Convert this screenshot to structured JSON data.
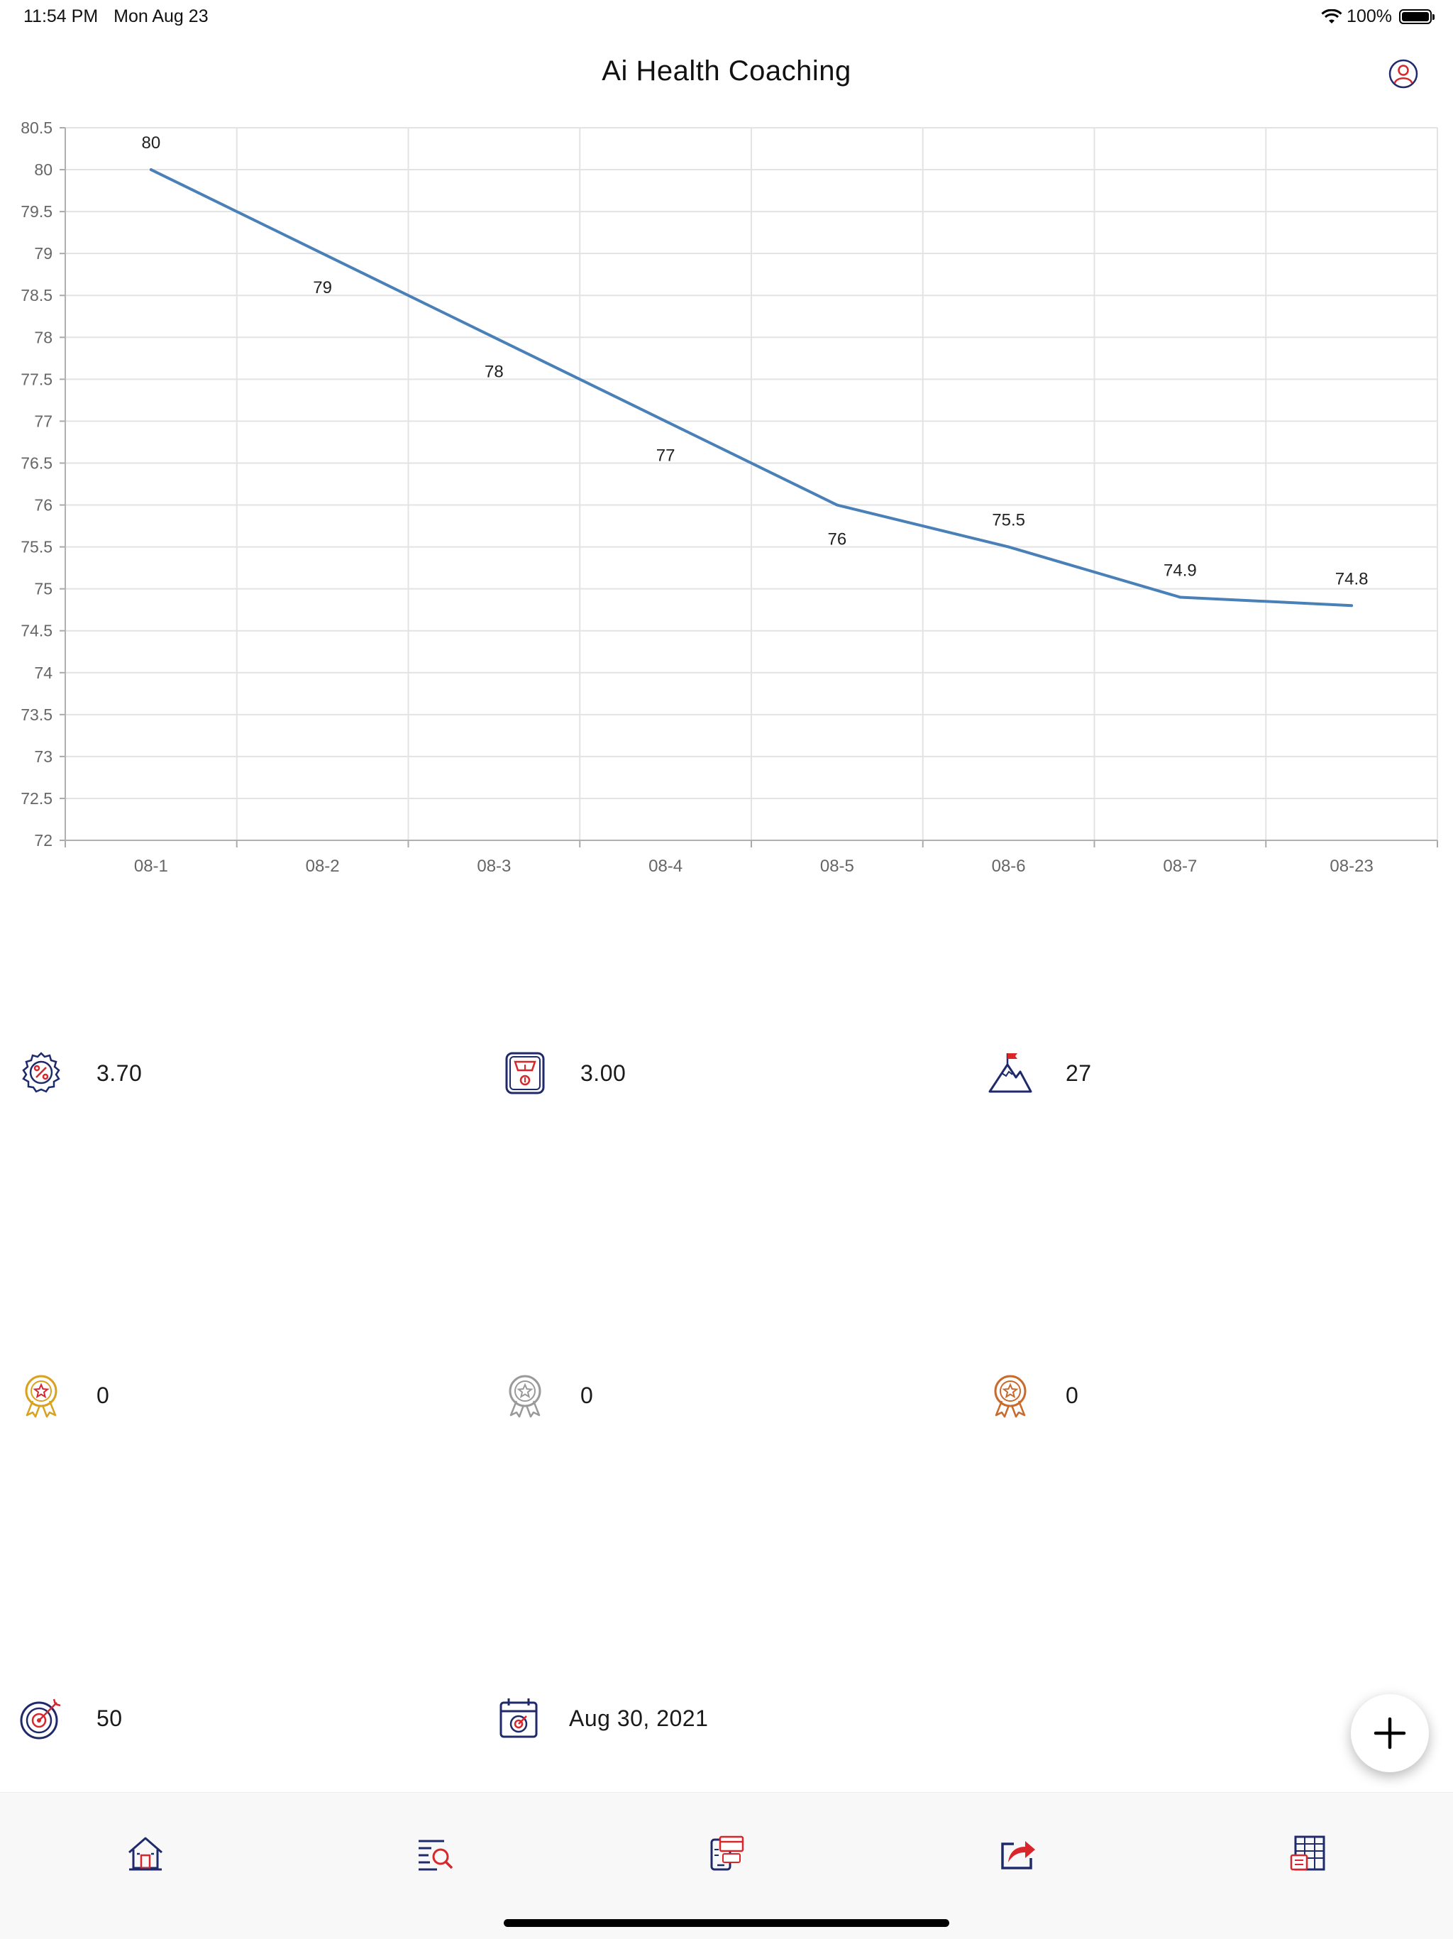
{
  "status": {
    "time": "11:54 PM",
    "date": "Mon Aug 23",
    "battery": "100%"
  },
  "nav": {
    "title": "Ai Health Coaching"
  },
  "colors": {
    "line": "#4a80b8",
    "grid": "#e3e3e3",
    "navy": "#1f2a6b",
    "red": "#d9262b",
    "gold": "#d9a21e",
    "silver": "#9a9a9a",
    "bronze": "#c96a2a"
  },
  "chart_data": {
    "type": "line",
    "categories": [
      "08-1",
      "08-2",
      "08-3",
      "08-4",
      "08-5",
      "08-6",
      "08-7",
      "08-23"
    ],
    "series": [
      {
        "values": [
          80,
          79,
          78,
          77,
          76,
          75.5,
          74.9,
          74.8
        ]
      }
    ],
    "data_labels": [
      "80",
      "79",
      "78",
      "77",
      "76",
      "75.5",
      "74.9",
      "74.8"
    ],
    "ylim": [
      72,
      80.5
    ],
    "y_ticks": [
      "72",
      "72.5",
      "73",
      "73.5",
      "74",
      "74.5",
      "75",
      "75.5",
      "76",
      "76.5",
      "77",
      "77.5",
      "78",
      "78.5",
      "79",
      "79.5",
      "80",
      "80.5"
    ],
    "grid": true,
    "title": "",
    "xlabel": "",
    "ylabel": ""
  },
  "stats": {
    "percent_value": "3.70",
    "scale_value": "3.00",
    "mountain_value": "27",
    "gold_medal_value": "0",
    "silver_medal_value": "0",
    "bronze_medal_value": "0",
    "target_value": "50",
    "date_value": "Aug 30, 2021"
  },
  "icons": {
    "stats": [
      "percent-badge-icon",
      "scale-icon",
      "mountain-flag-icon",
      "gold-medal-icon",
      "silver-medal-icon",
      "bronze-medal-icon",
      "target-icon",
      "calendar-target-icon"
    ],
    "fab": "plus-icon",
    "tabs": [
      "home-icon",
      "search-list-icon",
      "payment-icon",
      "share-icon",
      "table-icon"
    ]
  }
}
